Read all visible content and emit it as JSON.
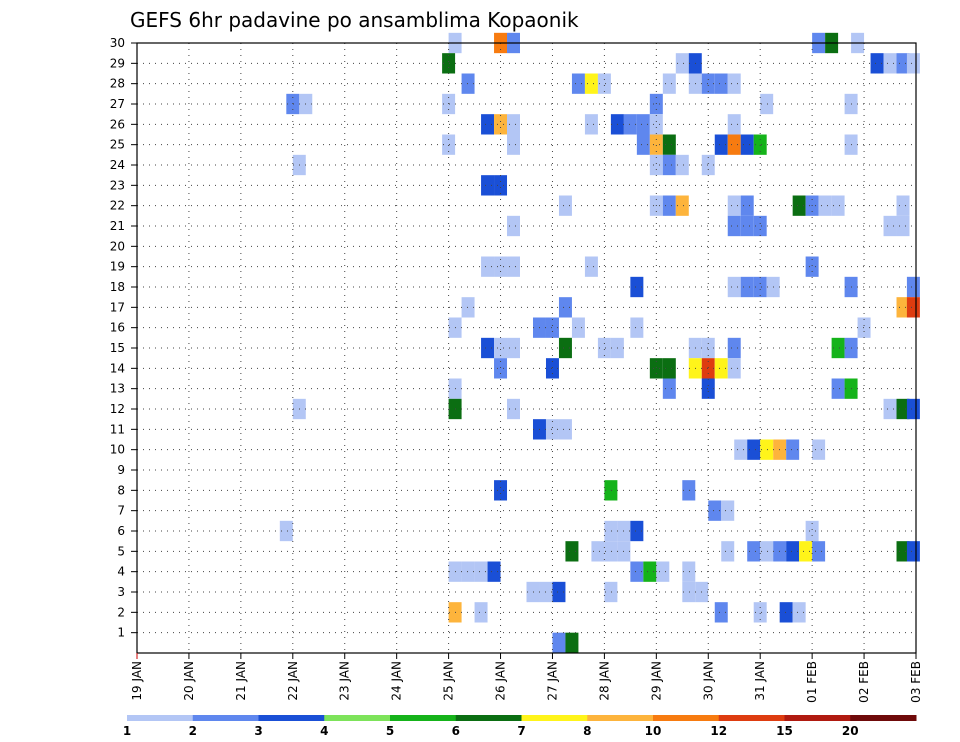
{
  "chart_data": {
    "type": "heatmap",
    "title": "GEFS 6hr padavine po ansamblima Kopaonik",
    "xlabel": "",
    "ylabel": "",
    "x_axis": {
      "unit": "6-hour steps from 19 JAN 00Z",
      "range": [
        0,
        60
      ],
      "tick_labels": [
        "19 JAN",
        "20 JAN",
        "21 JAN",
        "22 JAN",
        "23 JAN",
        "24 JAN",
        "25 JAN",
        "26 JAN",
        "27 JAN",
        "28 JAN",
        "29 JAN",
        "30 JAN",
        "31 JAN",
        "01 FEB",
        "02 FEB",
        "03 FEB"
      ]
    },
    "y_axis": {
      "unit": "ensemble member",
      "range": [
        0,
        30
      ],
      "tick_labels": [
        "1",
        "2",
        "3",
        "4",
        "5",
        "6",
        "7",
        "8",
        "9",
        "10",
        "11",
        "12",
        "13",
        "14",
        "15",
        "16",
        "17",
        "18",
        "19",
        "20",
        "21",
        "22",
        "23",
        "24",
        "25",
        "26",
        "27",
        "28",
        "29",
        "30"
      ]
    },
    "grid": true,
    "colorbar": {
      "placement": "bottom",
      "labels": [
        "1",
        "2",
        "3",
        "4",
        "5",
        "6",
        "7",
        "8",
        "10",
        "12",
        "15",
        "20"
      ],
      "colors": [
        "#b3c6f5",
        "#5f87ee",
        "#1a4fd6",
        "#7de35a",
        "#15b31a",
        "#0b6e12",
        "#fff41a",
        "#fdb43c",
        "#f77b10",
        "#de3c10",
        "#b01a10",
        "#6f0a0a"
      ]
    },
    "cells": [
      {
        "t": 24.5,
        "m": 30,
        "v": 1
      },
      {
        "t": 28,
        "m": 30,
        "v": 9
      },
      {
        "t": 29,
        "m": 30,
        "v": 2
      },
      {
        "t": 52.5,
        "m": 30,
        "v": 2
      },
      {
        "t": 53.5,
        "m": 30,
        "v": 6
      },
      {
        "t": 55.5,
        "m": 30,
        "v": 1
      },
      {
        "t": 24,
        "m": 29,
        "v": 6
      },
      {
        "t": 42,
        "m": 29,
        "v": 1
      },
      {
        "t": 43,
        "m": 29,
        "v": 3
      },
      {
        "t": 57,
        "m": 29,
        "v": 3
      },
      {
        "t": 58,
        "m": 29,
        "v": 1
      },
      {
        "t": 59,
        "m": 29,
        "v": 2
      },
      {
        "t": 59.8,
        "m": 29,
        "v": 1
      },
      {
        "t": 25.5,
        "m": 28,
        "v": 2
      },
      {
        "t": 34,
        "m": 28,
        "v": 2
      },
      {
        "t": 35,
        "m": 28,
        "v": 7
      },
      {
        "t": 36,
        "m": 28,
        "v": 1
      },
      {
        "t": 41,
        "m": 28,
        "v": 1
      },
      {
        "t": 43,
        "m": 28,
        "v": 1
      },
      {
        "t": 44,
        "m": 28,
        "v": 2
      },
      {
        "t": 45,
        "m": 28,
        "v": 2
      },
      {
        "t": 46,
        "m": 28,
        "v": 1
      },
      {
        "t": 12,
        "m": 27,
        "v": 2
      },
      {
        "t": 13,
        "m": 27,
        "v": 1
      },
      {
        "t": 24,
        "m": 27,
        "v": 1
      },
      {
        "t": 40,
        "m": 27,
        "v": 2
      },
      {
        "t": 48.5,
        "m": 27,
        "v": 1
      },
      {
        "t": 55,
        "m": 27,
        "v": 1
      },
      {
        "t": 27,
        "m": 26,
        "v": 3
      },
      {
        "t": 28,
        "m": 26,
        "v": 8
      },
      {
        "t": 29,
        "m": 26,
        "v": 1
      },
      {
        "t": 35,
        "m": 26,
        "v": 1
      },
      {
        "t": 37,
        "m": 26,
        "v": 3
      },
      {
        "t": 38,
        "m": 26,
        "v": 2
      },
      {
        "t": 39,
        "m": 26,
        "v": 2
      },
      {
        "t": 40,
        "m": 26,
        "v": 1
      },
      {
        "t": 46,
        "m": 26,
        "v": 1
      },
      {
        "t": 24,
        "m": 25,
        "v": 1
      },
      {
        "t": 29,
        "m": 25,
        "v": 1
      },
      {
        "t": 39,
        "m": 25,
        "v": 2
      },
      {
        "t": 40,
        "m": 25,
        "v": 8
      },
      {
        "t": 41,
        "m": 25,
        "v": 6
      },
      {
        "t": 45,
        "m": 25,
        "v": 3
      },
      {
        "t": 46,
        "m": 25,
        "v": 9
      },
      {
        "t": 47,
        "m": 25,
        "v": 3
      },
      {
        "t": 48,
        "m": 25,
        "v": 5
      },
      {
        "t": 55,
        "m": 25,
        "v": 1
      },
      {
        "t": 12.5,
        "m": 24,
        "v": 1
      },
      {
        "t": 40,
        "m": 24,
        "v": 1
      },
      {
        "t": 41,
        "m": 24,
        "v": 2
      },
      {
        "t": 42,
        "m": 24,
        "v": 1
      },
      {
        "t": 44,
        "m": 24,
        "v": 1
      },
      {
        "t": 27,
        "m": 23,
        "v": 3
      },
      {
        "t": 28,
        "m": 23,
        "v": 3
      },
      {
        "t": 33,
        "m": 22,
        "v": 1
      },
      {
        "t": 40,
        "m": 22,
        "v": 1
      },
      {
        "t": 41,
        "m": 22,
        "v": 2
      },
      {
        "t": 42,
        "m": 22,
        "v": 8
      },
      {
        "t": 46,
        "m": 22,
        "v": 1
      },
      {
        "t": 47,
        "m": 22,
        "v": 2
      },
      {
        "t": 51,
        "m": 22,
        "v": 6
      },
      {
        "t": 52,
        "m": 22,
        "v": 2
      },
      {
        "t": 53,
        "m": 22,
        "v": 1
      },
      {
        "t": 54,
        "m": 22,
        "v": 1
      },
      {
        "t": 59,
        "m": 22,
        "v": 1
      },
      {
        "t": 29,
        "m": 21,
        "v": 1
      },
      {
        "t": 46,
        "m": 21,
        "v": 2
      },
      {
        "t": 47,
        "m": 21,
        "v": 2
      },
      {
        "t": 48,
        "m": 21,
        "v": 2
      },
      {
        "t": 58,
        "m": 21,
        "v": 1
      },
      {
        "t": 59,
        "m": 21,
        "v": 1
      },
      {
        "t": 27,
        "m": 19,
        "v": 1
      },
      {
        "t": 28,
        "m": 19,
        "v": 1
      },
      {
        "t": 29,
        "m": 19,
        "v": 1
      },
      {
        "t": 35,
        "m": 19,
        "v": 1
      },
      {
        "t": 52,
        "m": 19,
        "v": 2
      },
      {
        "t": 38.5,
        "m": 18,
        "v": 3
      },
      {
        "t": 46,
        "m": 18,
        "v": 1
      },
      {
        "t": 47,
        "m": 18,
        "v": 2
      },
      {
        "t": 48,
        "m": 18,
        "v": 2
      },
      {
        "t": 49,
        "m": 18,
        "v": 1
      },
      {
        "t": 55,
        "m": 18,
        "v": 2
      },
      {
        "t": 59.8,
        "m": 18,
        "v": 2
      },
      {
        "t": 25.5,
        "m": 17,
        "v": 1
      },
      {
        "t": 33,
        "m": 17,
        "v": 2
      },
      {
        "t": 59,
        "m": 17,
        "v": 8
      },
      {
        "t": 59.8,
        "m": 17,
        "v": 10
      },
      {
        "t": 24.5,
        "m": 16,
        "v": 1
      },
      {
        "t": 31,
        "m": 16,
        "v": 2
      },
      {
        "t": 32,
        "m": 16,
        "v": 2
      },
      {
        "t": 34,
        "m": 16,
        "v": 1
      },
      {
        "t": 38.5,
        "m": 16,
        "v": 1
      },
      {
        "t": 56,
        "m": 16,
        "v": 1
      },
      {
        "t": 27,
        "m": 15,
        "v": 3
      },
      {
        "t": 28,
        "m": 15,
        "v": 1
      },
      {
        "t": 29,
        "m": 15,
        "v": 1
      },
      {
        "t": 33,
        "m": 15,
        "v": 6
      },
      {
        "t": 36,
        "m": 15,
        "v": 1
      },
      {
        "t": 37,
        "m": 15,
        "v": 1
      },
      {
        "t": 43,
        "m": 15,
        "v": 1
      },
      {
        "t": 44,
        "m": 15,
        "v": 1
      },
      {
        "t": 46,
        "m": 15,
        "v": 2
      },
      {
        "t": 54,
        "m": 15,
        "v": 5
      },
      {
        "t": 55,
        "m": 15,
        "v": 2
      },
      {
        "t": 28,
        "m": 14,
        "v": 2
      },
      {
        "t": 32,
        "m": 14,
        "v": 3
      },
      {
        "t": 40,
        "m": 14,
        "v": 6
      },
      {
        "t": 41,
        "m": 14,
        "v": 6
      },
      {
        "t": 43,
        "m": 14,
        "v": 7
      },
      {
        "t": 44,
        "m": 14,
        "v": 10
      },
      {
        "t": 45,
        "m": 14,
        "v": 7
      },
      {
        "t": 46,
        "m": 14,
        "v": 1
      },
      {
        "t": 24.5,
        "m": 13,
        "v": 1
      },
      {
        "t": 41,
        "m": 13,
        "v": 2
      },
      {
        "t": 44,
        "m": 13,
        "v": 3
      },
      {
        "t": 54,
        "m": 13,
        "v": 2
      },
      {
        "t": 55,
        "m": 13,
        "v": 5
      },
      {
        "t": 12.5,
        "m": 12,
        "v": 1
      },
      {
        "t": 24.5,
        "m": 12,
        "v": 6
      },
      {
        "t": 29,
        "m": 12,
        "v": 1
      },
      {
        "t": 58,
        "m": 12,
        "v": 1
      },
      {
        "t": 59,
        "m": 12,
        "v": 6
      },
      {
        "t": 59.8,
        "m": 12,
        "v": 3
      },
      {
        "t": 31,
        "m": 11,
        "v": 3
      },
      {
        "t": 32,
        "m": 11,
        "v": 1
      },
      {
        "t": 33,
        "m": 11,
        "v": 1
      },
      {
        "t": 46.5,
        "m": 10,
        "v": 1
      },
      {
        "t": 47.5,
        "m": 10,
        "v": 3
      },
      {
        "t": 48.5,
        "m": 10,
        "v": 7
      },
      {
        "t": 49.5,
        "m": 10,
        "v": 8
      },
      {
        "t": 50.5,
        "m": 10,
        "v": 2
      },
      {
        "t": 52.5,
        "m": 10,
        "v": 1
      },
      {
        "t": 28,
        "m": 8,
        "v": 3
      },
      {
        "t": 36.5,
        "m": 8,
        "v": 5
      },
      {
        "t": 42.5,
        "m": 8,
        "v": 2
      },
      {
        "t": 44.5,
        "m": 7,
        "v": 2
      },
      {
        "t": 45.5,
        "m": 7,
        "v": 1
      },
      {
        "t": 11.5,
        "m": 6,
        "v": 1
      },
      {
        "t": 36.5,
        "m": 6,
        "v": 1
      },
      {
        "t": 37.5,
        "m": 6,
        "v": 1
      },
      {
        "t": 38.5,
        "m": 6,
        "v": 3
      },
      {
        "t": 52,
        "m": 6,
        "v": 1
      },
      {
        "t": 33.5,
        "m": 5,
        "v": 6
      },
      {
        "t": 35.5,
        "m": 5,
        "v": 1
      },
      {
        "t": 36.5,
        "m": 5,
        "v": 1
      },
      {
        "t": 37.5,
        "m": 5,
        "v": 1
      },
      {
        "t": 45.5,
        "m": 5,
        "v": 1
      },
      {
        "t": 47.5,
        "m": 5,
        "v": 2
      },
      {
        "t": 48.5,
        "m": 5,
        "v": 1
      },
      {
        "t": 49.5,
        "m": 5,
        "v": 2
      },
      {
        "t": 50.5,
        "m": 5,
        "v": 3
      },
      {
        "t": 51.5,
        "m": 5,
        "v": 7
      },
      {
        "t": 52.5,
        "m": 5,
        "v": 2
      },
      {
        "t": 59,
        "m": 5,
        "v": 6
      },
      {
        "t": 59.8,
        "m": 5,
        "v": 3
      },
      {
        "t": 24.5,
        "m": 4,
        "v": 1
      },
      {
        "t": 25.5,
        "m": 4,
        "v": 1
      },
      {
        "t": 26.5,
        "m": 4,
        "v": 1
      },
      {
        "t": 27.5,
        "m": 4,
        "v": 3
      },
      {
        "t": 38.5,
        "m": 4,
        "v": 2
      },
      {
        "t": 39.5,
        "m": 4,
        "v": 5
      },
      {
        "t": 40.5,
        "m": 4,
        "v": 1
      },
      {
        "t": 42.5,
        "m": 4,
        "v": 1
      },
      {
        "t": 30.5,
        "m": 3,
        "v": 1
      },
      {
        "t": 31.5,
        "m": 3,
        "v": 1
      },
      {
        "t": 32.5,
        "m": 3,
        "v": 3
      },
      {
        "t": 36.5,
        "m": 3,
        "v": 1
      },
      {
        "t": 42.5,
        "m": 3,
        "v": 1
      },
      {
        "t": 43.5,
        "m": 3,
        "v": 1
      },
      {
        "t": 24.5,
        "m": 2,
        "v": 8
      },
      {
        "t": 26.5,
        "m": 2,
        "v": 1
      },
      {
        "t": 45,
        "m": 2,
        "v": 2
      },
      {
        "t": 48,
        "m": 2,
        "v": 1
      },
      {
        "t": 50,
        "m": 2,
        "v": 3
      },
      {
        "t": 51,
        "m": 2,
        "v": 1
      },
      {
        "t": 32.5,
        "m": 0.5,
        "v": 2
      },
      {
        "t": 33.5,
        "m": 0.5,
        "v": 6
      }
    ]
  }
}
